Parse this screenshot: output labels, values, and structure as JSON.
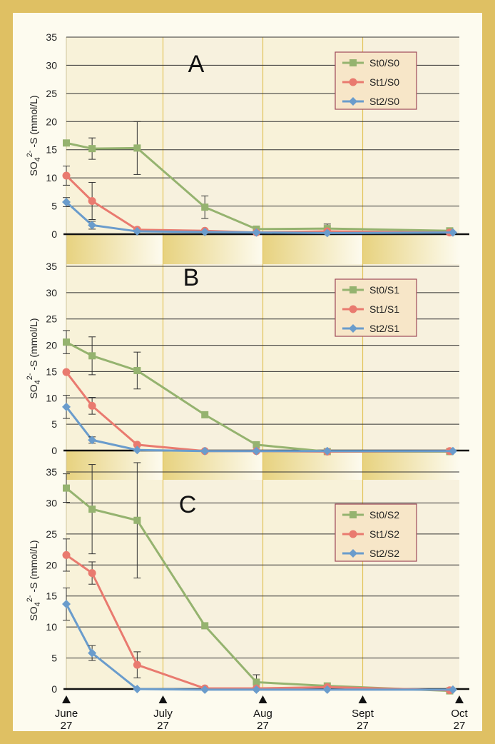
{
  "colors": {
    "frame": "#dfc063",
    "panel": "#fdfbef",
    "band_dark": "#e9d68f",
    "band_light": "#fdfbef",
    "grid": "#333333",
    "month_line": "#e3c55e",
    "st0": "#95b36f",
    "st1": "#e97a6f",
    "st2": "#6a9ccc",
    "legend_bg": "#f7e6c8",
    "legend_border": "#a04a5a"
  },
  "y_ticks": [
    0,
    5,
    10,
    15,
    20,
    25,
    30,
    35
  ],
  "x_axis": {
    "markers": [
      {
        "month": "June",
        "day": "27",
        "day_index": 0
      },
      {
        "month": "July",
        "day": "27",
        "day_index": 30
      },
      {
        "month": "Aug",
        "day": "27",
        "day_index": 61
      },
      {
        "month": "Sept",
        "day": "27",
        "day_index": 92
      },
      {
        "month": "Oct",
        "day": "27",
        "day_index": 122
      }
    ]
  },
  "chart_data": [
    {
      "type": "line",
      "panel_label": "A",
      "ylabel": "SO4 2- -S (mmol/L)",
      "ylim": [
        0,
        35
      ],
      "series": [
        {
          "name": "St0/S0",
          "color": "#95b36f",
          "marker": "square",
          "x": [
            0,
            8,
            22,
            43,
            59,
            81,
            119
          ],
          "y": [
            16.2,
            15.2,
            15.3,
            4.8,
            0.9,
            1.0,
            0.6
          ],
          "err": [
            0,
            1.9,
            4.7,
            2.0,
            0,
            0.8,
            0
          ]
        },
        {
          "name": "St1/S0",
          "color": "#e97a6f",
          "marker": "circle",
          "x": [
            0,
            8,
            22,
            43,
            59,
            81,
            119
          ],
          "y": [
            10.4,
            5.9,
            0.8,
            0.6,
            0.3,
            0.5,
            0.3
          ],
          "err": [
            1.7,
            3.3,
            0,
            0,
            0,
            0,
            0
          ]
        },
        {
          "name": "St2/S0",
          "color": "#6a9ccc",
          "marker": "diamond",
          "x": [
            0,
            8,
            22,
            43,
            59,
            81,
            120
          ],
          "y": [
            5.7,
            1.6,
            0.5,
            0.4,
            0.3,
            0.2,
            0.3
          ],
          "err": [
            0.8,
            0.7,
            0,
            0,
            0,
            0,
            0
          ]
        }
      ]
    },
    {
      "type": "line",
      "panel_label": "B",
      "ylabel": "SO4 2- -S (mmol/L)",
      "ylim": [
        0,
        35
      ],
      "series": [
        {
          "name": "St0/S1",
          "color": "#95b36f",
          "marker": "square",
          "x": [
            0,
            8,
            22,
            43,
            59,
            81,
            119
          ],
          "y": [
            20.6,
            18.0,
            15.2,
            6.8,
            1.1,
            -0.2,
            -0.2
          ],
          "err": [
            2.2,
            3.6,
            3.5,
            0,
            0,
            0,
            0
          ]
        },
        {
          "name": "St1/S1",
          "color": "#e97a6f",
          "marker": "circle",
          "x": [
            0,
            8,
            22,
            43,
            59,
            81,
            119
          ],
          "y": [
            14.9,
            8.5,
            1.1,
            -0.1,
            -0.1,
            -0.2,
            -0.1
          ],
          "err": [
            0,
            1.6,
            0,
            0,
            0,
            0,
            0
          ]
        },
        {
          "name": "St2/S1",
          "color": "#6a9ccc",
          "marker": "diamond",
          "x": [
            0,
            8,
            22,
            43,
            59,
            81,
            120
          ],
          "y": [
            8.3,
            2.0,
            0.1,
            -0.1,
            -0.1,
            -0.1,
            -0.1
          ],
          "err": [
            2.2,
            0.6,
            0,
            0,
            0,
            0,
            0
          ]
        }
      ]
    },
    {
      "type": "line",
      "panel_label": "C",
      "ylabel": "SO4 2- -S (mmol/L)",
      "ylim": [
        0,
        35
      ],
      "series": [
        {
          "name": "St0/S2",
          "color": "#95b36f",
          "marker": "square",
          "x": [
            0,
            8,
            22,
            43,
            59,
            81,
            119
          ],
          "y": [
            32.4,
            29.0,
            27.2,
            10.2,
            1.1,
            0.5,
            -0.3
          ],
          "err": [
            2.3,
            7.2,
            9.3,
            0,
            1.2,
            0,
            0
          ]
        },
        {
          "name": "St1/S2",
          "color": "#e97a6f",
          "marker": "circle",
          "x": [
            0,
            8,
            22,
            43,
            59,
            81,
            119
          ],
          "y": [
            21.6,
            18.7,
            3.9,
            0.1,
            0.1,
            0.3,
            -0.2
          ],
          "err": [
            2.6,
            1.8,
            2.1,
            0,
            0,
            0,
            0
          ]
        },
        {
          "name": "St2/S2",
          "color": "#6a9ccc",
          "marker": "diamond",
          "x": [
            0,
            8,
            22,
            43,
            59,
            81,
            120
          ],
          "y": [
            13.7,
            5.8,
            0.0,
            -0.1,
            -0.1,
            -0.1,
            -0.1
          ],
          "err": [
            2.6,
            1.2,
            0,
            0,
            0,
            0,
            0
          ]
        }
      ]
    }
  ]
}
